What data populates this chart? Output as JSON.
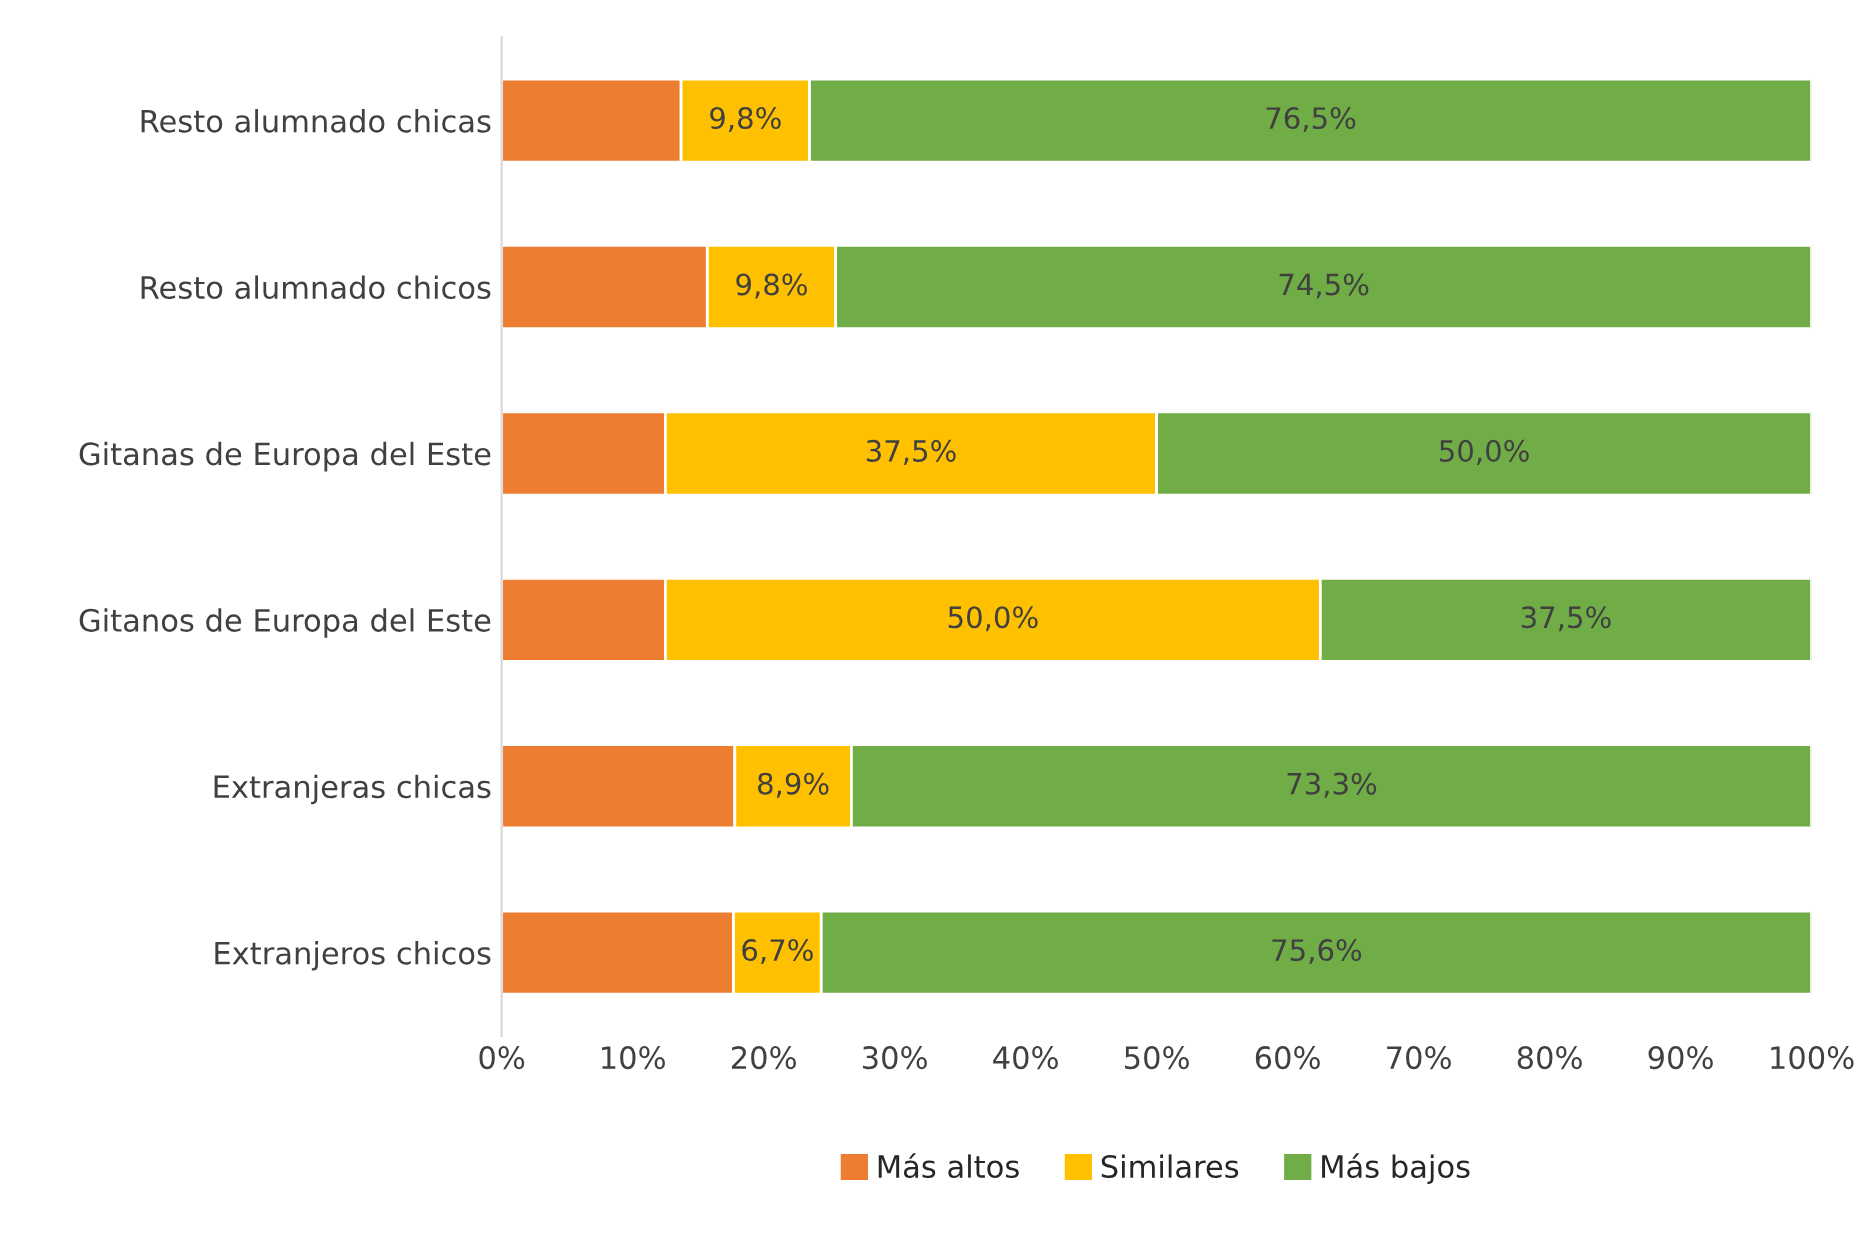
{
  "chart_data": {
    "type": "bar",
    "orientation": "horizontal",
    "stacked": true,
    "categories": [
      "Resto alumnado chicas",
      "Resto alumnado chicos",
      "Gitanas de Europa del Este",
      "Gitanos de Europa del Este",
      "Extranjeras chicas",
      "Extranjeros chicos"
    ],
    "series": [
      {
        "name": "Más altos",
        "color": "#ed7d31",
        "values": [
          13.7,
          15.7,
          12.5,
          12.5,
          17.8,
          17.7
        ]
      },
      {
        "name": "Similares",
        "color": "#ffc000",
        "values": [
          9.8,
          9.8,
          37.5,
          50.0,
          8.9,
          6.7
        ],
        "value_labels": [
          "9,8%",
          "9,8%",
          "37,5%",
          "50,0%",
          "8,9%",
          "6,7%"
        ]
      },
      {
        "name": "Más bajos",
        "color": "#70ad47",
        "values": [
          76.5,
          74.5,
          50.0,
          37.5,
          73.3,
          75.6
        ],
        "value_labels": [
          "76,5%",
          "74,5%",
          "50,0%",
          "37,5%",
          "73,3%",
          "75,6%"
        ]
      }
    ],
    "xlim": [
      0,
      100
    ],
    "xticks": [
      {
        "value": 0,
        "label": "0%"
      },
      {
        "value": 10,
        "label": "10%"
      },
      {
        "value": 20,
        "label": "20%"
      },
      {
        "value": 30,
        "label": "30%"
      },
      {
        "value": 40,
        "label": "40%"
      },
      {
        "value": 50,
        "label": "50%"
      },
      {
        "value": 60,
        "label": "60%"
      },
      {
        "value": 70,
        "label": "70%"
      },
      {
        "value": 80,
        "label": "80%"
      },
      {
        "value": 90,
        "label": "90%"
      },
      {
        "value": 100,
        "label": "100%"
      }
    ],
    "grid": false,
    "legend": "bottom"
  }
}
